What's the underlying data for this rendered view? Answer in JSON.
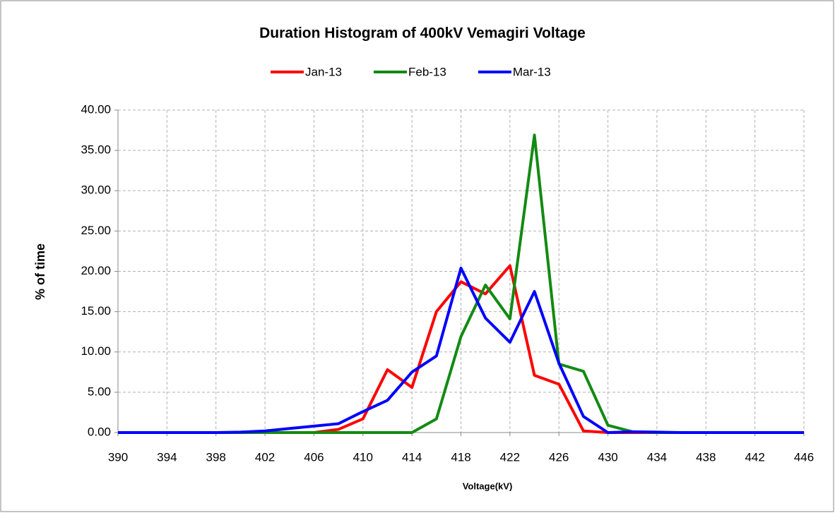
{
  "chart_data": {
    "type": "line",
    "title": "Duration Histogram of 400kV Vemagiri Voltage",
    "x_label": "Voltage(kV)",
    "y_label": "% of time",
    "x": [
      390,
      392,
      394,
      396,
      398,
      400,
      402,
      404,
      406,
      408,
      410,
      412,
      414,
      416,
      418,
      420,
      422,
      424,
      426,
      428,
      430,
      432,
      434,
      436,
      438,
      440,
      442,
      444,
      446
    ],
    "series": [
      {
        "name": "Jan-13",
        "color": "#ff0000",
        "values": [
          0,
          0,
          0,
          0,
          0,
          0,
          0,
          0,
          0,
          0.4,
          1.7,
          7.8,
          5.6,
          15.0,
          18.7,
          17.2,
          20.7,
          7.1,
          6.0,
          0.2,
          0,
          0,
          0,
          0,
          0,
          0,
          0,
          0,
          0
        ]
      },
      {
        "name": "Feb-13",
        "color": "#138a13",
        "values": [
          0,
          0,
          0,
          0,
          0,
          0,
          0,
          0,
          0,
          0,
          0,
          0,
          0,
          1.7,
          11.9,
          18.3,
          14.1,
          36.9,
          8.5,
          7.6,
          0.9,
          0.1,
          0,
          0,
          0,
          0,
          0,
          0,
          0
        ]
      },
      {
        "name": "Mar-13",
        "color": "#0000ff",
        "values": [
          0,
          0,
          0,
          0,
          0,
          0.05,
          0.2,
          0.5,
          0.8,
          1.1,
          2.6,
          4.0,
          7.5,
          9.5,
          20.4,
          14.2,
          11.2,
          17.5,
          8.6,
          2.0,
          0,
          0.1,
          0.05,
          0,
          0,
          0,
          0,
          0,
          0
        ]
      }
    ],
    "xlim": [
      390,
      446
    ],
    "xticks": [
      390,
      394,
      398,
      402,
      406,
      410,
      414,
      418,
      422,
      426,
      430,
      434,
      438,
      442,
      446
    ],
    "ylim": [
      0,
      40
    ],
    "yticks": [
      {
        "value": 0,
        "label": "0.00"
      },
      {
        "value": 5,
        "label": "5.00"
      },
      {
        "value": 10,
        "label": "10.00"
      },
      {
        "value": 15,
        "label": "15.00"
      },
      {
        "value": 20,
        "label": "20.00"
      },
      {
        "value": 25,
        "label": "25.00"
      },
      {
        "value": 30,
        "label": "30.00"
      },
      {
        "value": 35,
        "label": "35.00"
      },
      {
        "value": 40,
        "label": "40.00"
      }
    ],
    "grid": true,
    "legend": "top"
  }
}
